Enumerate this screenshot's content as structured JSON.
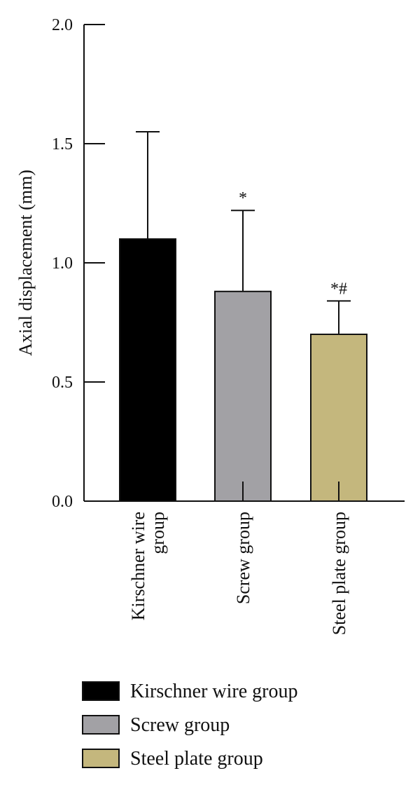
{
  "chart_data": {
    "type": "bar",
    "ylabel": "Axial displacement (mm)",
    "ylim": [
      0,
      2.0
    ],
    "yticks": [
      "0.0",
      "0.5",
      "1.0",
      "1.5",
      "2.0"
    ],
    "categories": [
      [
        "Kirschner wire",
        "group"
      ],
      [
        "Screw group"
      ],
      [
        "Steel plate group"
      ]
    ],
    "values": [
      1.1,
      0.88,
      0.7
    ],
    "error": [
      0.45,
      0.34,
      0.14
    ],
    "significance": [
      "",
      "*",
      "*#"
    ],
    "colors": [
      "#000000",
      "#a2a1a5",
      "#c4b77d"
    ],
    "legend": {
      "position": "bottom",
      "entries": [
        "Kirschner wire group",
        "Screw group",
        "Steel plate group"
      ]
    }
  }
}
